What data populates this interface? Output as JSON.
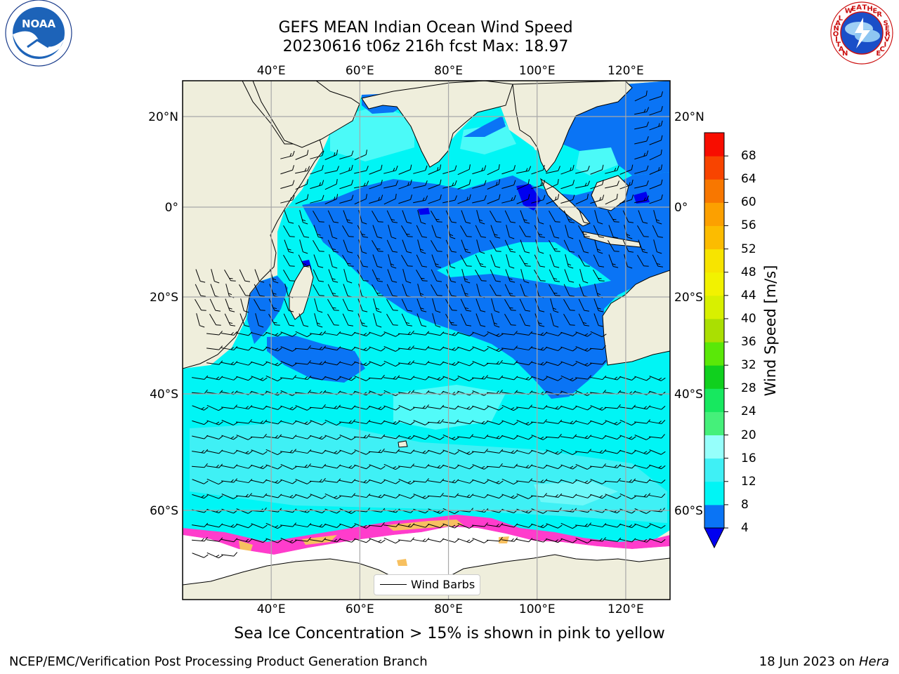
{
  "title": {
    "line1": "GEFS MEAN Indian Ocean Wind Speed",
    "line2": "20230616 t06z 216h fcst   Max: 18.97"
  },
  "map": {
    "lon_labels": [
      "40°E",
      "60°E",
      "80°E",
      "100°E",
      "120°E"
    ],
    "lat_labels": [
      "20°N",
      "0°",
      "20°S",
      "40°S",
      "60°S"
    ],
    "lon_range": [
      20,
      130
    ],
    "lat_range": [
      -73,
      27.5
    ]
  },
  "colorbar": {
    "title": "Wind Speed [m/s]",
    "ticks": [
      "4",
      "8",
      "12",
      "16",
      "20",
      "24",
      "28",
      "32",
      "36",
      "40",
      "44",
      "48",
      "52",
      "56",
      "60",
      "64",
      "68"
    ],
    "colors": [
      "#0a74f5",
      "#00f5f5",
      "#3ff0f5",
      "#96fffb",
      "#45f07a",
      "#17e85f",
      "#10d01e",
      "#5ae808",
      "#aadf02",
      "#d8f000",
      "#f2f200",
      "#f7e400",
      "#fcbc00",
      "#fca000",
      "#f87700",
      "#f84400",
      "#f80d00"
    ],
    "extend_color": "#0000f0"
  },
  "legend": {
    "label": "Wind Barbs"
  },
  "note": "Sea Ice Concentration > 15% is shown in pink to yellow",
  "footer": {
    "left": "NCEP/EMC/Verification Post Processing Product Generation Branch",
    "right_date": "18 Jun 2023 on ",
    "right_host": "Hera"
  },
  "logos": {
    "noaa_text": "NOAA",
    "nws_text": "NATIONAL WEATHER SERVICE"
  },
  "colors": {
    "land": "#efeedc",
    "strong_band": "#0a74f5",
    "calm_band": "#0000f0",
    "ocean_base": "#00f5f5",
    "ocean_light": "#3ff0f5",
    "ocean_pale": "#96fffb",
    "ice_pink": "#ff3ccc",
    "ice_orange": "#f7c060"
  }
}
